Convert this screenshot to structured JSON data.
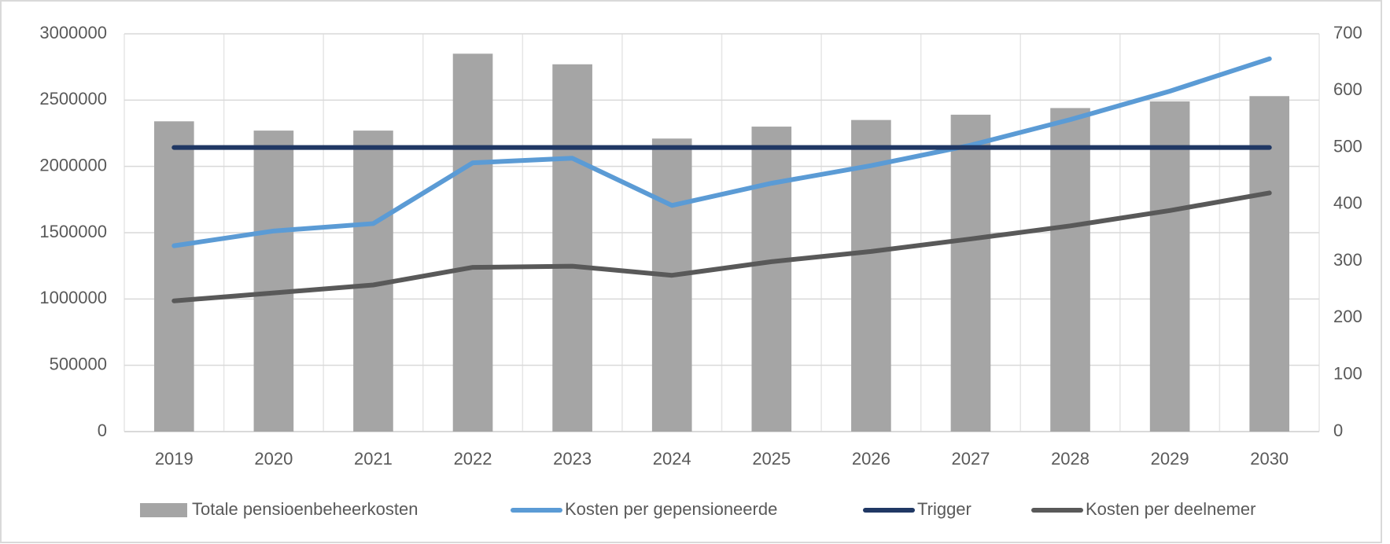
{
  "chart_data": {
    "type": "bar_line",
    "categories": [
      "2019",
      "2020",
      "2021",
      "2022",
      "2023",
      "2024",
      "2025",
      "2026",
      "2027",
      "2028",
      "2029",
      "2030"
    ],
    "series": [
      {
        "name": "Totale pensioenbeheerkosten",
        "type": "bar",
        "color": "#a5a5a5",
        "axis": "y",
        "values": [
          2340000,
          2270000,
          2270000,
          2850000,
          2770000,
          2210000,
          2300000,
          2350000,
          2390000,
          2440000,
          2490000,
          2530000
        ]
      },
      {
        "name": "Kosten per gepensioneerde",
        "type": "line",
        "color": "#5b9bd5",
        "axis": "y2",
        "values": [
          327,
          353,
          366,
          473,
          481,
          398,
          437,
          468,
          504,
          549,
          599,
          656
        ]
      },
      {
        "name": "Trigger",
        "type": "line",
        "color": "#203864",
        "axis": "y2",
        "values": [
          500,
          500,
          500,
          500,
          500,
          500,
          500,
          500,
          500,
          500,
          500,
          500
        ]
      },
      {
        "name": "Kosten per deelnemer",
        "type": "line",
        "color": "#595959",
        "axis": "y2",
        "values": [
          230,
          244,
          258,
          289,
          291,
          275,
          299,
          317,
          339,
          362,
          389,
          420
        ]
      }
    ],
    "ylim": [
      0,
      3000000
    ],
    "yticks": [
      0,
      500000,
      1000000,
      1500000,
      2000000,
      2500000,
      3000000
    ],
    "y2lim": [
      0,
      700
    ],
    "y2ticks": [
      0,
      100,
      200,
      300,
      400,
      500,
      600,
      700
    ],
    "grid": true,
    "legend": "bottom"
  }
}
